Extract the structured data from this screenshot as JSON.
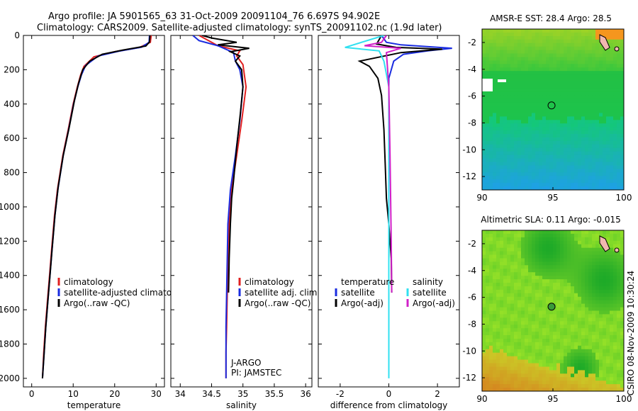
{
  "title": {
    "line1": "Argo profile: JA 5901565_63 31-Oct-2009 20091104_76 6.697S 94.902E",
    "line2": "Climatology: CARS2009. Satellite-adjusted climatology: synTS_20091102.nc (1.9d later)"
  },
  "side_label": "CSIRO 08-Nov-2009 10:30:24",
  "colors": {
    "climatology": "#e02020",
    "satellite": "#1a2ce0",
    "argo": "#000000",
    "sal_diff_sat": "#30e0f0",
    "sal_diff_argo": "#d020c8"
  },
  "chart_data": [
    {
      "type": "line",
      "xlabel": "temperature",
      "xlim": [
        -2,
        32
      ],
      "xticks": [
        0,
        10,
        20,
        30
      ],
      "ylim": [
        2050,
        0
      ],
      "yticks": [
        0,
        200,
        400,
        600,
        800,
        1000,
        1200,
        1400,
        1600,
        1800,
        2000
      ],
      "legend": [
        "climatology",
        "satellite-adjusted climatology",
        "Argo(..raw -QC)"
      ],
      "series": [
        {
          "name": "climatology",
          "color": "climatology",
          "points": [
            [
              28.8,
              0
            ],
            [
              28.6,
              40
            ],
            [
              26,
              70
            ],
            [
              20,
              95
            ],
            [
              15,
              125
            ],
            [
              12.6,
              180
            ],
            [
              11.8,
              230
            ],
            [
              11,
              300
            ],
            [
              10,
              400
            ],
            [
              8.8,
              550
            ],
            [
              7.5,
              700
            ],
            [
              6.2,
              900
            ],
            [
              5.5,
              1050
            ],
            [
              4.8,
              1250
            ],
            [
              4.3,
              1400
            ],
            [
              3.8,
              1550
            ],
            [
              3.3,
              1700
            ],
            [
              2.9,
              1850
            ],
            [
              2.6,
              2000
            ]
          ]
        },
        {
          "name": "satellite-adjusted climatology",
          "color": "satellite",
          "points": [
            [
              28.4,
              0
            ],
            [
              28.3,
              40
            ],
            [
              26.5,
              68
            ],
            [
              21,
              92
            ],
            [
              16,
              120
            ],
            [
              13,
              175
            ],
            [
              12,
              230
            ],
            [
              11.1,
              300
            ],
            [
              10.1,
              400
            ],
            [
              8.9,
              550
            ],
            [
              7.6,
              700
            ],
            [
              6.3,
              900
            ],
            [
              5.6,
              1050
            ],
            [
              4.9,
              1250
            ],
            [
              4.4,
              1400
            ],
            [
              3.9,
              1550
            ],
            [
              3.4,
              1700
            ],
            [
              3,
              1850
            ],
            [
              2.6,
              2000
            ]
          ]
        },
        {
          "name": "Argo(..raw -QC)",
          "color": "argo",
          "points": [
            [
              28.5,
              0
            ],
            [
              28.4,
              38
            ],
            [
              27.5,
              62
            ],
            [
              22,
              85
            ],
            [
              17,
              110
            ],
            [
              14,
              150
            ],
            [
              12.3,
              200
            ],
            [
              11.3,
              280
            ],
            [
              10.3,
              380
            ],
            [
              9,
              540
            ],
            [
              7.6,
              700
            ],
            [
              6.4,
              880
            ],
            [
              5.6,
              1050
            ],
            [
              4.9,
              1250
            ],
            [
              4.4,
              1400
            ],
            [
              3.9,
              1550
            ],
            [
              3.4,
              1700
            ],
            [
              3,
              1850
            ],
            [
              2.6,
              2000
            ]
          ]
        }
      ]
    },
    {
      "type": "line",
      "xlabel": "salinity",
      "xlim": [
        33.85,
        36.1
      ],
      "xticks": [
        34,
        34.5,
        35,
        35.5,
        36
      ],
      "ylim": [
        2050,
        0
      ],
      "legend": [
        "climatology",
        "satellite adj. clim.",
        "Argo(..raw -QC)"
      ],
      "annotations": [
        "J-ARGO",
        "PI: JAMSTEC"
      ],
      "series": [
        {
          "name": "climatology",
          "color": "climatology",
          "points": [
            [
              34.3,
              0
            ],
            [
              34.45,
              30
            ],
            [
              34.6,
              60
            ],
            [
              34.95,
              90
            ],
            [
              34.9,
              120
            ],
            [
              35.0,
              170
            ],
            [
              35.05,
              300
            ],
            [
              34.98,
              500
            ],
            [
              34.9,
              700
            ],
            [
              34.82,
              900
            ],
            [
              34.78,
              1100
            ],
            [
              34.76,
              1300
            ],
            [
              34.75,
              1500
            ],
            [
              34.74,
              1700
            ],
            [
              34.73,
              1850
            ],
            [
              34.73,
              2000
            ]
          ]
        },
        {
          "name": "satellite adj. clim.",
          "color": "satellite",
          "points": [
            [
              34.2,
              0
            ],
            [
              34.3,
              30
            ],
            [
              34.6,
              60
            ],
            [
              34.85,
              100
            ],
            [
              34.88,
              150
            ],
            [
              34.95,
              200
            ],
            [
              35.0,
              300
            ],
            [
              34.95,
              500
            ],
            [
              34.88,
              700
            ],
            [
              34.8,
              900
            ],
            [
              34.76,
              1100
            ],
            [
              34.75,
              1300
            ],
            [
              34.74,
              1500
            ],
            [
              34.73,
              1700
            ],
            [
              34.73,
              1850
            ],
            [
              34.73,
              2000
            ]
          ]
        },
        {
          "name": "Argo(..raw -QC)",
          "color": "argo",
          "points": [
            [
              34.35,
              0
            ],
            [
              34.5,
              15
            ],
            [
              34.9,
              40
            ],
            [
              34.6,
              55
            ],
            [
              35.1,
              75
            ],
            [
              34.8,
              95
            ],
            [
              34.95,
              120
            ],
            [
              34.88,
              150
            ],
            [
              34.98,
              200
            ],
            [
              35.0,
              300
            ],
            [
              34.96,
              450
            ],
            [
              34.9,
              650
            ],
            [
              34.85,
              850
            ],
            [
              34.82,
              950
            ],
            [
              34.8,
              1100
            ],
            [
              34.78,
              1300
            ],
            [
              34.77,
              1500
            ]
          ]
        }
      ]
    },
    {
      "type": "line",
      "xlabel": "difference from climatology",
      "xlim": [
        -2.9,
        2.9
      ],
      "xticks": [
        -2,
        0,
        2
      ],
      "ylim": [
        2050,
        0
      ],
      "legend_left": [
        "temperature",
        "satellite",
        "Argo(-adj)"
      ],
      "legend_right": [
        "salinity",
        "satellite",
        "Argo(-adj)"
      ],
      "series": [
        {
          "name": "temperature satellite",
          "color": "satellite",
          "points": [
            [
              -0.3,
              0
            ],
            [
              -0.1,
              40
            ],
            [
              0.5,
              55
            ],
            [
              2.6,
              75
            ],
            [
              1.6,
              90
            ],
            [
              0.6,
              110
            ],
            [
              0.2,
              150
            ],
            [
              0,
              250
            ],
            [
              0,
              500
            ],
            [
              0,
              1000
            ],
            [
              0,
              1500
            ]
          ]
        },
        {
          "name": "temperature Argo(-adj)",
          "color": "argo",
          "points": [
            [
              -0.3,
              0
            ],
            [
              -0.5,
              50
            ],
            [
              0.3,
              70
            ],
            [
              2.2,
              80
            ],
            [
              0.5,
              100
            ],
            [
              -1.2,
              150
            ],
            [
              -0.8,
              180
            ],
            [
              -0.45,
              250
            ],
            [
              -0.3,
              350
            ],
            [
              -0.2,
              550
            ],
            [
              -0.15,
              750
            ],
            [
              -0.1,
              950
            ],
            [
              0,
              1100
            ],
            [
              0.1,
              1300
            ],
            [
              0.12,
              1500
            ]
          ]
        },
        {
          "name": "salinity satellite",
          "color": "sal_diff_sat",
          "points": [
            [
              -0.2,
              0
            ],
            [
              -1.8,
              70
            ],
            [
              -0.4,
              90
            ],
            [
              -0.2,
              150
            ],
            [
              0,
              300
            ],
            [
              0,
              600
            ],
            [
              0,
              1000
            ],
            [
              0,
              1500
            ],
            [
              0,
              2000
            ]
          ]
        },
        {
          "name": "salinity Argo(-adj)",
          "color": "sal_diff_argo",
          "points": [
            [
              -0.1,
              0
            ],
            [
              -0.3,
              40
            ],
            [
              -1.0,
              60
            ],
            [
              0.5,
              75
            ],
            [
              -0.1,
              100
            ],
            [
              0,
              300
            ],
            [
              0.05,
              700
            ],
            [
              0.1,
              1200
            ],
            [
              0.12,
              1500
            ]
          ]
        }
      ]
    },
    {
      "type": "heatmap",
      "title": "AMSR-E SST: 28.4  Argo: 28.5",
      "xlim": [
        90,
        100
      ],
      "ylim": [
        -13,
        -1
      ],
      "xticks": [
        90,
        95,
        100
      ],
      "yticks": [
        -2,
        -4,
        -6,
        -8,
        -10,
        -12
      ],
      "marker": [
        94.902,
        -6.697
      ]
    },
    {
      "type": "heatmap",
      "title": "Altimetric SLA: 0.11  Argo: -0.015",
      "xlim": [
        90,
        100
      ],
      "ylim": [
        -13,
        -1
      ],
      "xticks": [
        90,
        95,
        100
      ],
      "yticks": [
        -2,
        -4,
        -6,
        -8,
        -10,
        -12
      ],
      "marker": [
        94.902,
        -6.697
      ]
    }
  ]
}
